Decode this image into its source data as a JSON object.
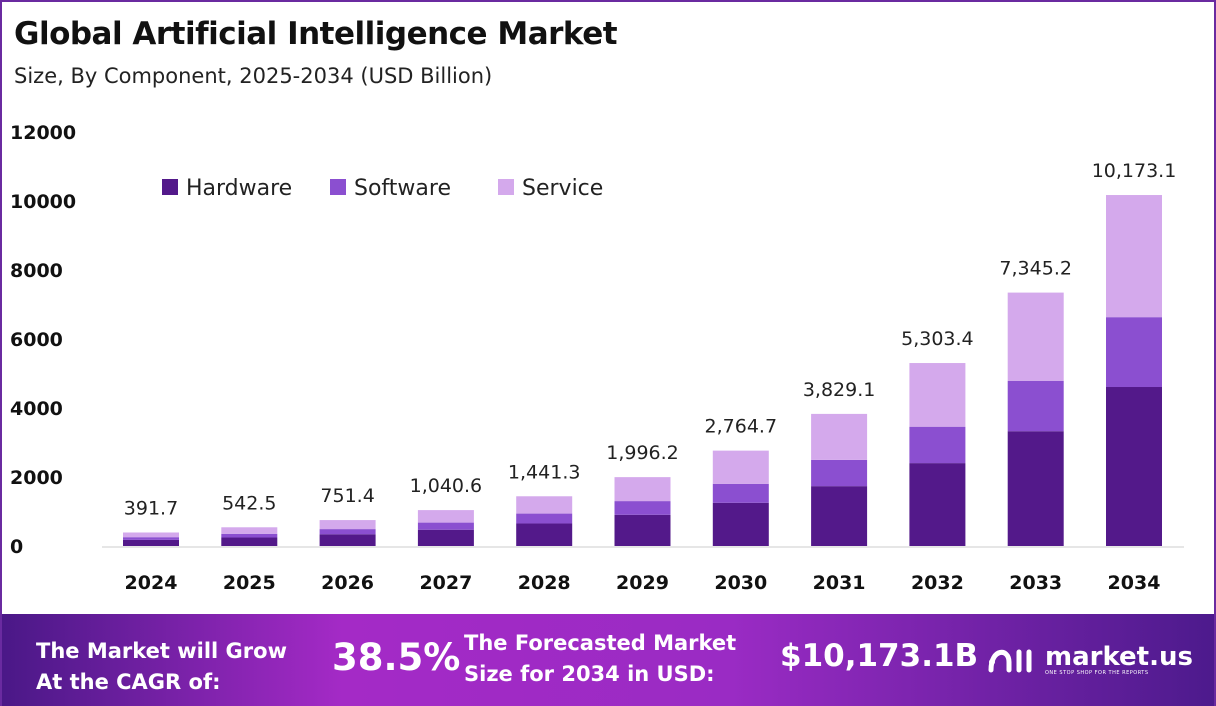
{
  "chart_data": {
    "type": "bar",
    "stacked": true,
    "title": "Global Artificial Intelligence Market",
    "subtitle": "Size, By Component, 2025-2034 (USD Billion)",
    "categories": [
      "2024",
      "2025",
      "2026",
      "2027",
      "2028",
      "2029",
      "2030",
      "2031",
      "2032",
      "2033",
      "2034"
    ],
    "series": [
      {
        "name": "Hardware",
        "color": "#53198a",
        "values": [
          177.4,
          245.8,
          340.4,
          471.4,
          652.9,
          904.3,
          1252.4,
          1734.6,
          2402.4,
          3327.4,
          4608.4
        ]
      },
      {
        "name": "Software",
        "color": "#8b4fd0",
        "values": [
          78.0,
          108.0,
          149.5,
          207.1,
          286.8,
          397.2,
          550.2,
          762.0,
          1055.4,
          1461.7,
          2024.4
        ]
      },
      {
        "name": "Service",
        "color": "#d4a9ec",
        "values": [
          136.3,
          188.7,
          261.5,
          362.1,
          501.6,
          694.7,
          962.1,
          1332.5,
          1845.6,
          2556.1,
          3540.3
        ]
      }
    ],
    "totals": [
      391.7,
      542.5,
      751.4,
      1040.6,
      1441.3,
      1996.2,
      2764.7,
      3829.1,
      5303.4,
      7345.2,
      10173.1
    ],
    "total_labels": [
      "391.7",
      "542.5",
      "751.4",
      "1,040.6",
      "1,441.3",
      "1,996.2",
      "2,764.7",
      "3,829.1",
      "5,303.4",
      "7,345.2",
      "10,173.1"
    ],
    "yticks": [
      "0",
      "2000",
      "4000",
      "6000",
      "8000",
      "10000",
      "12000"
    ],
    "ylim": [
      0,
      12000
    ],
    "xlabel": "",
    "ylabel": "",
    "grid": false,
    "legend_position": "top-left"
  },
  "banner": {
    "cagr_label_line1": "The Market will Grow",
    "cagr_label_line2": "At the CAGR of:",
    "cagr_value": "38.5%",
    "forecast_label_line1": "The Forecasted Market",
    "forecast_label_line2": "Size for 2034 in USD:",
    "forecast_value": "$10,173.1B",
    "logo_name": "market.us",
    "logo_tagline": "ONE STOP SHOP FOR THE REPORTS"
  }
}
